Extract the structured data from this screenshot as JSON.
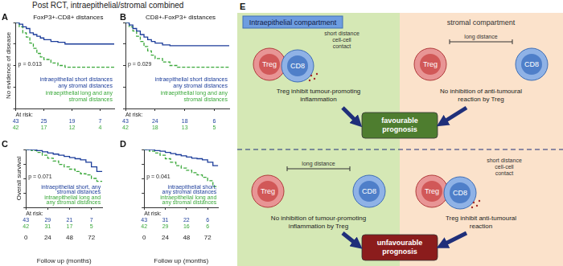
{
  "header": {
    "title": "Post RCT, intraepithelial/stromal combined"
  },
  "chart_data": [
    {
      "label": "A",
      "type": "line",
      "title": "FoxP3+-CD8+ distances",
      "y_label": "No evidence of disease",
      "xlim": [
        0,
        84
      ],
      "xticks": [
        0,
        24,
        48,
        72
      ],
      "ylim": [
        0,
        1
      ],
      "yticks": [
        0,
        0.25,
        0.5,
        0.75,
        1
      ],
      "grid": false,
      "tick_labels": false,
      "p_value": "p = 0.013",
      "series": [
        {
          "name": "intraepithelial short distances any stromal distances",
          "color": "#1c3d9a",
          "line_style": "solid",
          "marker": "none",
          "x": [
            0,
            3,
            6,
            9,
            12,
            15,
            18,
            21,
            24,
            30,
            36,
            42,
            84
          ],
          "values": [
            1,
            0.98,
            0.95,
            0.93,
            0.88,
            0.86,
            0.84,
            0.82,
            0.8,
            0.78,
            0.77,
            0.75,
            0.75
          ]
        },
        {
          "name": "intraepithelial long and any stromal distances",
          "color": "#3aa83a",
          "line_style": "dashed",
          "marker": "none",
          "x": [
            0,
            3,
            6,
            9,
            12,
            15,
            18,
            21,
            24,
            30,
            36,
            42,
            48,
            84
          ],
          "values": [
            1,
            0.95,
            0.88,
            0.83,
            0.76,
            0.7,
            0.64,
            0.6,
            0.57,
            0.53,
            0.5,
            0.48,
            0.48,
            0.48
          ]
        }
      ],
      "at_risk": {
        "label": "At risk:",
        "rows": [
          [
            43,
            25,
            19,
            7
          ],
          [
            42,
            17,
            12,
            4
          ]
        ]
      }
    },
    {
      "label": "B",
      "type": "line",
      "title": "CD8+-FoxP3+ distances",
      "xlim": [
        0,
        84
      ],
      "xticks": [
        0,
        24,
        48,
        72
      ],
      "ylim": [
        0,
        1
      ],
      "yticks": [
        0,
        0.25,
        0.5,
        0.75,
        1
      ],
      "grid": false,
      "tick_labels": false,
      "p_value": "p = 0.029",
      "series": [
        {
          "name": "intraepithelial short distances any stromal distances",
          "color": "#1c3d9a",
          "line_style": "solid",
          "marker": "none",
          "x": [
            0,
            3,
            6,
            9,
            12,
            15,
            18,
            21,
            24,
            30,
            36,
            84
          ],
          "values": [
            1,
            0.97,
            0.93,
            0.9,
            0.86,
            0.83,
            0.8,
            0.78,
            0.76,
            0.74,
            0.73,
            0.73
          ]
        },
        {
          "name": "intraepithelial long and any stromal distances",
          "color": "#3aa83a",
          "line_style": "dashed",
          "marker": "none",
          "x": [
            0,
            3,
            6,
            9,
            12,
            15,
            18,
            21,
            24,
            30,
            36,
            42,
            84
          ],
          "values": [
            1,
            0.95,
            0.9,
            0.84,
            0.78,
            0.72,
            0.67,
            0.62,
            0.58,
            0.54,
            0.5,
            0.48,
            0.48
          ]
        }
      ],
      "at_risk": {
        "label": "At risk:",
        "rows": [
          [
            43,
            24,
            18,
            6
          ],
          [
            42,
            18,
            13,
            5
          ]
        ]
      }
    },
    {
      "label": "C",
      "type": "line",
      "y_label": "Overall survival",
      "x_label": "Follow up (months)",
      "xlim": [
        0,
        84
      ],
      "xticks": [
        0,
        24,
        48,
        72
      ],
      "ylim": [
        0,
        1
      ],
      "yticks": [
        0,
        0.25,
        0.5,
        0.75,
        1
      ],
      "grid": false,
      "tick_labels": "x",
      "p_value": "p = 0.071",
      "series": [
        {
          "name": "intraepithelial short, any stromal distances",
          "color": "#1c3d9a",
          "line_style": "solid",
          "marker": "none",
          "x": [
            0,
            6,
            12,
            18,
            24,
            30,
            36,
            42,
            48,
            54,
            60,
            66,
            72,
            78,
            84
          ],
          "values": [
            1,
            1,
            0.98,
            0.96,
            0.94,
            0.92,
            0.9,
            0.88,
            0.86,
            0.84,
            0.82,
            0.78,
            0.7,
            0.62,
            0.62
          ]
        },
        {
          "name": "intraepithelial long and any stromal distances",
          "color": "#3aa83a",
          "line_style": "dashed",
          "marker": "none",
          "x": [
            0,
            6,
            12,
            18,
            24,
            30,
            36,
            42,
            48,
            54,
            60,
            66,
            72,
            78,
            84
          ],
          "values": [
            1,
            0.98,
            0.95,
            0.9,
            0.85,
            0.8,
            0.74,
            0.7,
            0.66,
            0.62,
            0.58,
            0.56,
            0.5,
            0.45,
            0.45
          ]
        }
      ],
      "at_risk": {
        "label": "At risk:",
        "rows": [
          [
            43,
            29,
            21,
            7
          ],
          [
            42,
            31,
            17,
            5
          ]
        ]
      }
    },
    {
      "label": "D",
      "type": "line",
      "x_label": "Follow up (months)",
      "xlim": [
        0,
        84
      ],
      "xticks": [
        0,
        24,
        48,
        72
      ],
      "ylim": [
        0,
        1
      ],
      "yticks": [
        0,
        0.25,
        0.5,
        0.75,
        1
      ],
      "grid": false,
      "tick_labels": "x",
      "p_value": "p = 0.041",
      "series": [
        {
          "name": "intraepithelial short, any stromal distances",
          "color": "#1c3d9a",
          "line_style": "solid",
          "marker": "none",
          "x": [
            0,
            6,
            12,
            18,
            24,
            30,
            36,
            42,
            48,
            54,
            60,
            66,
            72,
            78,
            84
          ],
          "values": [
            1,
            1,
            0.98,
            0.97,
            0.95,
            0.93,
            0.91,
            0.89,
            0.87,
            0.85,
            0.84,
            0.82,
            0.78,
            0.72,
            0.72
          ]
        },
        {
          "name": "intraepithelial long and any stromal distances",
          "color": "#3aa83a",
          "line_style": "dashed",
          "marker": "none",
          "x": [
            0,
            6,
            12,
            18,
            24,
            30,
            36,
            42,
            48,
            54,
            60,
            66,
            72,
            78,
            84
          ],
          "values": [
            1,
            0.97,
            0.94,
            0.9,
            0.84,
            0.78,
            0.72,
            0.68,
            0.64,
            0.6,
            0.56,
            0.52,
            0.46,
            0.36,
            0.36
          ]
        }
      ],
      "at_risk": {
        "label": "At risk:",
        "rows": [
          [
            43,
            31,
            22,
            6
          ],
          [
            42,
            29,
            16,
            6
          ]
        ]
      }
    }
  ],
  "diagram": {
    "label": "E",
    "compartments": [
      "Intraepithelial compartment",
      "stromal compartment"
    ],
    "cells": {
      "treg": "Treg",
      "cd8": "CD8"
    },
    "rows": [
      {
        "outcome": "favourable prognosis",
        "scenarios": [
          {
            "contact_label": "short distance cell-cell contact",
            "caption": "Treg inhibit tumour-promoting inflammation"
          },
          {
            "distance_label": "long distance",
            "caption": "No inhibition of anti-tumoural reaction by Treg"
          }
        ]
      },
      {
        "outcome": "unfavourable prognosis",
        "scenarios": [
          {
            "distance_label": "long distance",
            "caption": "No inhibition of tumour-promoting inflammation by Treg"
          },
          {
            "contact_label": "short distance cell-cell contact",
            "caption": "Treg inhibit anti-tumoural reaction"
          }
        ]
      }
    ]
  }
}
